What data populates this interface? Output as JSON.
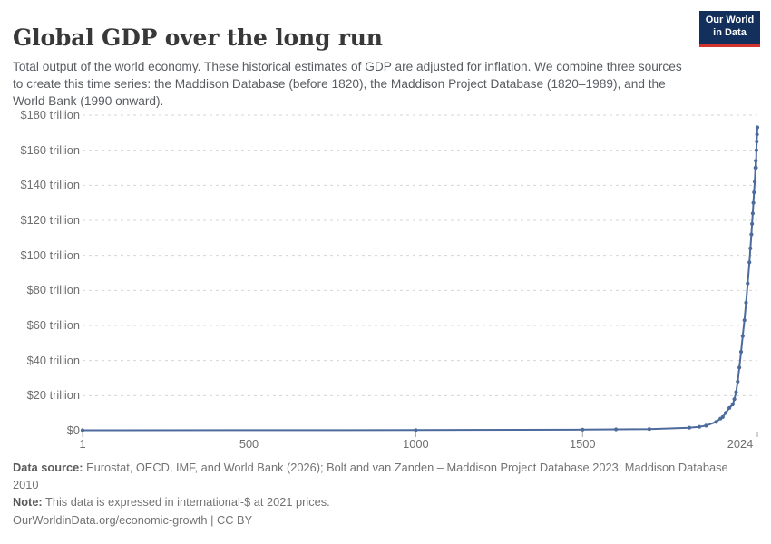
{
  "header": {
    "title": "Global GDP over the long run",
    "subtitle": "Total output of the world economy. These historical estimates of GDP are adjusted for inflation. We combine three sources to create this time series: the Maddison Database (before 1820), the Maddison Project Database (1820–1989), and the World Bank (1990 onward).",
    "logo": {
      "line1": "Our World",
      "line2": "in Data",
      "bg_color": "#12305b",
      "accent_color": "#d0342c"
    }
  },
  "chart_data": {
    "type": "line",
    "title": "Global GDP over the long run",
    "series": [
      {
        "name": "World GDP",
        "points": [
          [
            1,
            0.25
          ],
          [
            1000,
            0.35
          ],
          [
            1500,
            0.6
          ],
          [
            1600,
            0.8
          ],
          [
            1700,
            0.95
          ],
          [
            1820,
            1.7
          ],
          [
            1850,
            2.2
          ],
          [
            1870,
            2.9
          ],
          [
            1900,
            5.0
          ],
          [
            1913,
            6.9
          ],
          [
            1920,
            7.8
          ],
          [
            1929,
            10.2
          ],
          [
            1940,
            13
          ],
          [
            1950,
            15
          ],
          [
            1955,
            18
          ],
          [
            1960,
            22
          ],
          [
            1965,
            28
          ],
          [
            1970,
            36
          ],
          [
            1975,
            45
          ],
          [
            1980,
            54
          ],
          [
            1985,
            63
          ],
          [
            1990,
            73
          ],
          [
            1995,
            84
          ],
          [
            2000,
            96
          ],
          [
            2003,
            104
          ],
          [
            2006,
            112
          ],
          [
            2008,
            118
          ],
          [
            2010,
            124
          ],
          [
            2012,
            130
          ],
          [
            2014,
            136
          ],
          [
            2016,
            142
          ],
          [
            2018,
            150
          ],
          [
            2019,
            154
          ],
          [
            2020,
            150
          ],
          [
            2021,
            160
          ],
          [
            2022,
            165
          ],
          [
            2023,
            169
          ],
          [
            2024,
            173
          ]
        ]
      }
    ],
    "value_unit": "trillion international-$ at 2021 prices",
    "x_domain": [
      1,
      2024
    ],
    "y_domain": [
      0,
      180
    ],
    "grid": "horizontal-dashed",
    "legend": "none",
    "line_color": "#4C6A9C",
    "marker": "circle",
    "y_ticks": [
      {
        "value": 180,
        "label": "$180 trillion"
      },
      {
        "value": 160,
        "label": "$160 trillion"
      },
      {
        "value": 140,
        "label": "$140 trillion"
      },
      {
        "value": 120,
        "label": "$120 trillion"
      },
      {
        "value": 100,
        "label": "$100 trillion"
      },
      {
        "value": 80,
        "label": "$80 trillion"
      },
      {
        "value": 60,
        "label": "$60 trillion"
      },
      {
        "value": 40,
        "label": "$40 trillion"
      },
      {
        "value": 20,
        "label": "$20 trillion"
      },
      {
        "value": 0,
        "label": "$0"
      }
    ],
    "x_ticks": [
      {
        "value": 1,
        "label": "1"
      },
      {
        "value": 500,
        "label": "500"
      },
      {
        "value": 1000,
        "label": "1000"
      },
      {
        "value": 1500,
        "label": "1500"
      },
      {
        "value": 2024,
        "label": "2024"
      }
    ]
  },
  "footer": {
    "data_source_label": "Data source:",
    "data_source_text": " Eurostat, OECD, IMF, and World Bank (2026); Bolt and van Zanden – Maddison Project Database 2023; Maddison Database 2010",
    "note_label": "Note:",
    "note_text": " This data is expressed in international-$ at 2021 prices.",
    "cc_line": "OurWorldinData.org/economic-growth | CC BY"
  }
}
